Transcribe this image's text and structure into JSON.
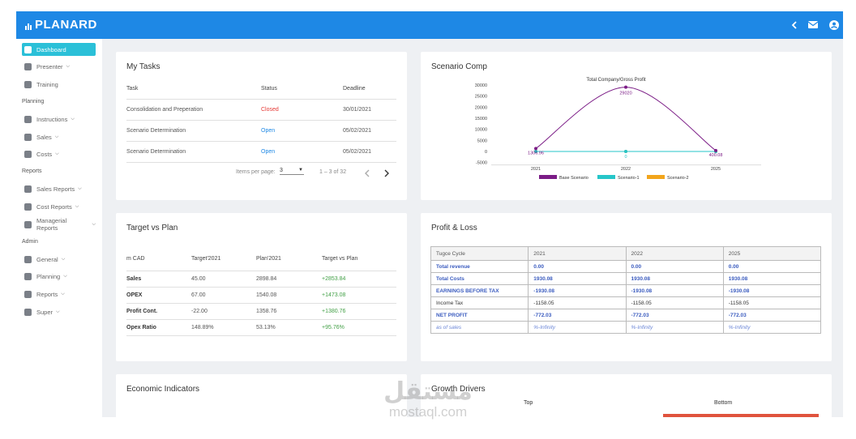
{
  "header": {
    "brand": "PLANARD"
  },
  "sidebar": [
    {
      "text": "Dashboard",
      "active": true
    },
    {
      "text": "Presenter",
      "expandable": true
    },
    {
      "text": "Training"
    },
    {
      "section": "Planning"
    },
    {
      "text": "Instructions",
      "expandable": true
    },
    {
      "text": "Sales",
      "expandable": true
    },
    {
      "text": "Costs",
      "expandable": true
    },
    {
      "section": "Reports"
    },
    {
      "text": "Sales Reports",
      "expandable": true
    },
    {
      "text": "Cost Reports",
      "expandable": true
    },
    {
      "text": "Managerial Reports",
      "expandable": true
    },
    {
      "section": "Admin"
    },
    {
      "text": "General",
      "expandable": true
    },
    {
      "text": "Planning",
      "expandable": true
    },
    {
      "text": "Reports",
      "expandable": true
    },
    {
      "text": "Super",
      "expandable": true
    }
  ],
  "my_tasks": {
    "title": "My Tasks",
    "columns": [
      "Task",
      "Status",
      "Deadline"
    ],
    "rows": [
      [
        "Consolidation and Preperation",
        "Closed",
        "30/01/2021"
      ],
      [
        "Scenario Determination",
        "Open",
        "05/02/2021"
      ],
      [
        "Scenario Determination",
        "Open",
        "05/02/2021"
      ]
    ],
    "items_per_page_label": "Items per page:",
    "items_per_page": "3",
    "range": "1 – 3 of 32"
  },
  "scenario_comp": {
    "title": "Scenario Comp"
  },
  "chart_data": {
    "type": "line",
    "title": "Total Company/Gross Profit",
    "categories": [
      "2021",
      "2022",
      "2025"
    ],
    "series": [
      {
        "name": "Base Scenario",
        "color": "#7b1c86",
        "values": [
          1306.96,
          29020,
          400.08
        ]
      },
      {
        "name": "Scenario-1",
        "color": "#26c6c9",
        "values": [
          0,
          0,
          0
        ]
      },
      {
        "name": "Scenario-2",
        "color": "#f2a51c",
        "values": [
          0,
          0,
          0
        ]
      }
    ],
    "ylim": [
      -5000,
      30000
    ],
    "yticks": [
      -5000,
      0,
      5000,
      10000,
      15000,
      20000,
      25000,
      30000
    ],
    "grid": false
  },
  "target_vs_plan": {
    "title": "Target vs Plan",
    "columns": [
      "m CAD",
      "Target'2021",
      "Plan'2021",
      "Target vs Plan"
    ],
    "rows": [
      [
        "Sales",
        "45.00",
        "2898.84",
        "+2853.84"
      ],
      [
        "OPEX",
        "67.00",
        "1540.08",
        "+1473.08"
      ],
      [
        "Profit Cont.",
        "-22.00",
        "1358.76",
        "+1380.76"
      ],
      [
        "Opex Ratio",
        "148.89%",
        "53.13%",
        "+95.76%"
      ]
    ]
  },
  "profit_loss": {
    "title": "Profit & Loss",
    "columns": [
      "Tugce Cycle",
      "2021",
      "2022",
      "2025"
    ],
    "rows": [
      {
        "style": "bold",
        "cells": [
          "Total revenue",
          "0.00",
          "0.00",
          "0.00"
        ]
      },
      {
        "style": "bold",
        "cells": [
          "Total Costs",
          "1930.08",
          "1930.08",
          "1930.08"
        ]
      },
      {
        "style": "bold",
        "cells": [
          "EARNINGS BEFORE TAX",
          "-1930.08",
          "-1930.08",
          "-1930.08"
        ]
      },
      {
        "style": "normal",
        "cells": [
          "Income Tax",
          "-1158.05",
          "-1158.05",
          "-1158.05"
        ]
      },
      {
        "style": "bold",
        "cells": [
          "NET PROFIT",
          "-772.03",
          "-772.03",
          "-772.03"
        ]
      },
      {
        "style": "italic",
        "cells": [
          "as of sales",
          "%-Infinity",
          "%-Infinity",
          "%-Infinity"
        ]
      }
    ]
  },
  "economic_indicators": {
    "title": "Economic Indicators"
  },
  "growth_drivers": {
    "title": "Growth Drivers",
    "top": "Top",
    "bottom": "Bottom"
  },
  "watermark": {
    "arabic": "مستقل",
    "latin": "mostaql.com"
  }
}
